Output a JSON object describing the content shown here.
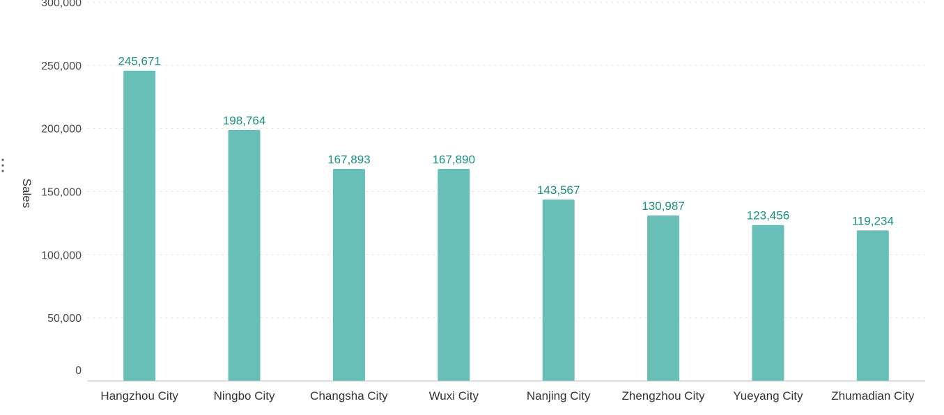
{
  "chart_data": {
    "type": "bar",
    "categories": [
      "Hangzhou City",
      "Ningbo City",
      "Changsha City",
      "Wuxi City",
      "Nanjing City",
      "Zhengzhou City",
      "Yueyang City",
      "Zhumadian City"
    ],
    "values": [
      245671,
      198764,
      167893,
      167890,
      143567,
      130987,
      123456,
      119234
    ],
    "data_labels": [
      "245,671",
      "198,764",
      "167,893",
      "167,890",
      "143,567",
      "130,987",
      "123,456",
      "119,234"
    ],
    "title": "",
    "xlabel": "",
    "ylabel": "Sales",
    "ylim": [
      0,
      300000
    ],
    "y_ticks": [
      0,
      50000,
      100000,
      150000,
      200000,
      250000,
      300000
    ],
    "y_tick_labels": [
      "0",
      "50,000",
      "100,000",
      "150,000",
      "200,000",
      "250,000",
      "300,000"
    ],
    "grid": true,
    "legend": "none"
  },
  "colors": {
    "bar": "#67bfb8",
    "data_label": "#19917f",
    "grid": "#e3e3e3",
    "axis": "#bdbdbd"
  },
  "icons": {
    "menu": "vertical-ellipsis-icon"
  }
}
